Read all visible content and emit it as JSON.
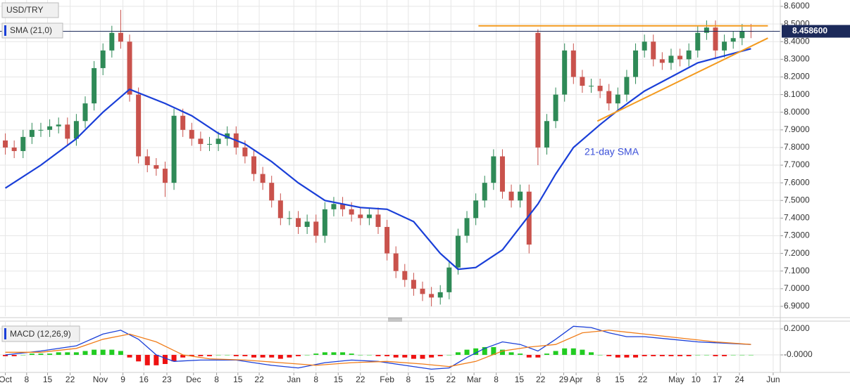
{
  "chart_data": [
    {
      "type": "candlestick",
      "title": "USD/TRY",
      "open": [
        7.84,
        7.8,
        7.78,
        7.86,
        7.9,
        7.9,
        7.92,
        7.93,
        7.85,
        7.95,
        8.05,
        8.25,
        8.35,
        8.45,
        8.4,
        8.1,
        7.75,
        7.7,
        7.68,
        7.6,
        7.98,
        7.9,
        7.85,
        7.82,
        7.82,
        7.85,
        7.88,
        7.8,
        7.75,
        7.65,
        7.6,
        7.5,
        7.4,
        7.4,
        7.35,
        7.38,
        7.3,
        7.45,
        7.48,
        7.45,
        7.42,
        7.4,
        7.42,
        7.35,
        7.2,
        7.1,
        7.05,
        7.0,
        6.97,
        6.95,
        6.98,
        7.12,
        7.3,
        7.4,
        7.5,
        7.6,
        7.75,
        7.55,
        7.5,
        7.55,
        8.45,
        7.8,
        7.95,
        8.1,
        8.35,
        8.2,
        8.15,
        8.15,
        8.12,
        8.05,
        8.1,
        8.2,
        8.35,
        8.4,
        8.3,
        8.28,
        8.32,
        8.3,
        8.35,
        8.45,
        8.48,
        8.35,
        8.4,
        8.42,
        8.46
      ],
      "high": [
        7.88,
        7.84,
        7.9,
        7.94,
        7.94,
        7.96,
        7.97,
        7.97,
        7.99,
        8.09,
        8.29,
        8.39,
        8.49,
        8.58,
        8.44,
        8.14,
        7.79,
        7.74,
        7.72,
        8.02,
        8.02,
        7.94,
        7.89,
        7.86,
        7.89,
        7.92,
        7.92,
        7.84,
        7.79,
        7.69,
        7.64,
        7.54,
        7.44,
        7.44,
        7.42,
        7.42,
        7.49,
        7.52,
        7.52,
        7.49,
        7.46,
        7.46,
        7.46,
        7.39,
        7.24,
        7.14,
        7.09,
        7.04,
        7.01,
        7.02,
        7.16,
        7.34,
        7.44,
        7.54,
        7.64,
        7.79,
        7.79,
        7.59,
        7.59,
        7.59,
        8.47,
        7.99,
        8.14,
        8.39,
        8.39,
        8.24,
        8.19,
        8.19,
        8.16,
        8.14,
        8.24,
        8.39,
        8.44,
        8.44,
        8.34,
        8.36,
        8.36,
        8.39,
        8.49,
        8.52,
        8.52,
        8.44,
        8.46,
        8.5,
        8.5
      ],
      "low": [
        7.76,
        7.74,
        7.74,
        7.82,
        7.86,
        7.86,
        7.88,
        7.81,
        7.81,
        7.91,
        8.01,
        8.21,
        8.31,
        8.36,
        8.06,
        7.71,
        7.66,
        7.64,
        7.52,
        7.56,
        7.86,
        7.81,
        7.78,
        7.78,
        7.78,
        7.81,
        7.76,
        7.71,
        7.61,
        7.56,
        7.46,
        7.36,
        7.36,
        7.31,
        7.31,
        7.26,
        7.26,
        7.41,
        7.41,
        7.38,
        7.36,
        7.36,
        7.31,
        7.16,
        7.06,
        7.01,
        6.96,
        6.93,
        6.9,
        6.91,
        6.94,
        7.08,
        7.26,
        7.36,
        7.46,
        7.56,
        7.51,
        7.46,
        7.46,
        7.2,
        7.7,
        7.76,
        7.91,
        8.06,
        8.16,
        8.11,
        8.11,
        8.08,
        8.01,
        8.01,
        8.06,
        8.16,
        8.31,
        8.26,
        8.24,
        8.24,
        8.26,
        8.26,
        8.31,
        8.41,
        8.31,
        8.31,
        8.36,
        8.38,
        8.42
      ],
      "close": [
        7.8,
        7.78,
        7.86,
        7.9,
        7.9,
        7.92,
        7.93,
        7.85,
        7.95,
        8.05,
        8.25,
        8.35,
        8.45,
        8.4,
        8.1,
        7.75,
        7.7,
        7.68,
        7.6,
        7.98,
        7.9,
        7.85,
        7.82,
        7.82,
        7.85,
        7.88,
        7.8,
        7.75,
        7.65,
        7.6,
        7.5,
        7.4,
        7.4,
        7.35,
        7.38,
        7.3,
        7.45,
        7.48,
        7.45,
        7.42,
        7.4,
        7.42,
        7.35,
        7.2,
        7.1,
        7.05,
        7.0,
        6.97,
        6.95,
        6.98,
        7.12,
        7.3,
        7.4,
        7.5,
        7.6,
        7.75,
        7.55,
        7.5,
        7.55,
        7.25,
        7.8,
        7.95,
        8.1,
        8.35,
        8.2,
        8.15,
        8.15,
        8.12,
        8.05,
        8.1,
        8.2,
        8.35,
        8.4,
        8.3,
        8.28,
        8.32,
        8.3,
        8.35,
        8.45,
        8.48,
        8.35,
        8.4,
        8.42,
        8.46,
        8.4586
      ],
      "up_color": "#2f8a57",
      "down_color": "#c9524c",
      "series": [
        {
          "name": "SMA (21,0)",
          "color": "#1a3fd8",
          "x": [
            0,
            4,
            8,
            11,
            14,
            18,
            21,
            24,
            27,
            30,
            33,
            36,
            40,
            43,
            46,
            49,
            51,
            53,
            56,
            58,
            60,
            62,
            64,
            67,
            69,
            72,
            75,
            78,
            81,
            84
          ],
          "values": [
            7.57,
            7.7,
            7.85,
            8.0,
            8.13,
            8.05,
            7.98,
            7.88,
            7.82,
            7.72,
            7.6,
            7.5,
            7.46,
            7.45,
            7.38,
            7.2,
            7.11,
            7.12,
            7.22,
            7.35,
            7.48,
            7.65,
            7.8,
            7.93,
            8.01,
            8.12,
            8.2,
            8.28,
            8.32,
            8.36
          ]
        }
      ],
      "lines": [
        {
          "color": "#f39a1e",
          "x": [
            53.3,
            85.9
          ],
          "values": [
            8.49,
            8.49
          ]
        },
        {
          "color": "#f39a1e",
          "x": [
            66.7,
            85.9
          ],
          "values": [
            7.95,
            8.42
          ]
        }
      ],
      "annotation": "21-day SMA",
      "last_price": {
        "value": 8.4586,
        "label": "8.458600"
      },
      "xlim": [
        -0.6,
        87.3
      ],
      "ylim": [
        6.844,
        8.636
      ],
      "grid": true,
      "xticks": [
        {
          "value": 0,
          "label": "Oct"
        },
        {
          "value": 2.4,
          "label": "8"
        },
        {
          "value": 4.76,
          "label": "15"
        },
        {
          "value": 7.3,
          "label": "22"
        },
        {
          "value": 10.7,
          "label": "Nov"
        },
        {
          "value": 13.25,
          "label": "9"
        },
        {
          "value": 15.6,
          "label": "16"
        },
        {
          "value": 18.2,
          "label": "23"
        },
        {
          "value": 21.2,
          "label": "Dec"
        },
        {
          "value": 23.8,
          "label": "8"
        },
        {
          "value": 26.2,
          "label": "15"
        },
        {
          "value": 28.6,
          "label": "22"
        },
        {
          "value": 32.5,
          "label": "Jan"
        },
        {
          "value": 35,
          "label": "8"
        },
        {
          "value": 37.5,
          "label": "15"
        },
        {
          "value": 40,
          "label": "22"
        },
        {
          "value": 43,
          "label": "Feb"
        },
        {
          "value": 45.4,
          "label": "8"
        },
        {
          "value": 47.8,
          "label": "15"
        },
        {
          "value": 50.2,
          "label": "22"
        },
        {
          "value": 52.8,
          "label": "Mar"
        },
        {
          "value": 55.3,
          "label": "8"
        },
        {
          "value": 57.9,
          "label": "15"
        },
        {
          "value": 60.3,
          "label": "22"
        },
        {
          "value": 62.9,
          "label": "29"
        },
        {
          "value": 64.3,
          "label": "Apr"
        },
        {
          "value": 66.8,
          "label": "8"
        },
        {
          "value": 69.2,
          "label": "15"
        },
        {
          "value": 71.8,
          "label": "22"
        },
        {
          "value": 75.6,
          "label": "May"
        },
        {
          "value": 77.8,
          "label": "10"
        },
        {
          "value": 80.2,
          "label": "17"
        },
        {
          "value": 82.7,
          "label": "24"
        },
        {
          "value": 86.5,
          "label": "Jun"
        }
      ],
      "yticks": [
        {
          "value": 8.6,
          "label": "8.6000"
        },
        {
          "value": 8.5,
          "label": "8.5000"
        },
        {
          "value": 8.4,
          "label": "8.4000"
        },
        {
          "value": 8.3,
          "label": "8.3000"
        },
        {
          "value": 8.2,
          "label": "8.2000"
        },
        {
          "value": 8.1,
          "label": "8.1000"
        },
        {
          "value": 8.0,
          "label": "8.0000"
        },
        {
          "value": 7.9,
          "label": "7.9000"
        },
        {
          "value": 7.8,
          "label": "7.8000"
        },
        {
          "value": 7.7,
          "label": "7.7000"
        },
        {
          "value": 7.6,
          "label": "7.6000"
        },
        {
          "value": 7.5,
          "label": "7.5000"
        },
        {
          "value": 7.4,
          "label": "7.4000"
        },
        {
          "value": 7.3,
          "label": "7.3000"
        },
        {
          "value": 7.2,
          "label": "7.2000"
        },
        {
          "value": 7.1,
          "label": "7.1000"
        },
        {
          "value": 7.0,
          "label": "7.0000"
        },
        {
          "value": 6.9,
          "label": "6.9000"
        }
      ]
    },
    {
      "type": "macd",
      "title": "MACD (12,26,9)",
      "hist": [
        -0.01,
        -0.01,
        0.0,
        0.01,
        0.01,
        0.01,
        0.02,
        0.02,
        0.02,
        0.03,
        0.04,
        0.04,
        0.04,
        0.03,
        -0.02,
        -0.05,
        -0.08,
        -0.08,
        -0.07,
        -0.05,
        -0.02,
        -0.01,
        -0.01,
        -0.01,
        0.0,
        0.0,
        -0.01,
        -0.01,
        -0.02,
        -0.02,
        -0.02,
        -0.03,
        -0.02,
        -0.01,
        0.0,
        0.01,
        0.02,
        0.02,
        0.02,
        0.01,
        0.0,
        0.0,
        -0.01,
        -0.01,
        -0.02,
        -0.02,
        -0.03,
        -0.03,
        -0.02,
        -0.01,
        0.0,
        0.02,
        0.04,
        0.05,
        0.06,
        0.06,
        0.04,
        0.02,
        0.01,
        -0.02,
        -0.02,
        0.01,
        0.03,
        0.05,
        0.05,
        0.04,
        0.02,
        0.0,
        -0.01,
        -0.02,
        -0.02,
        -0.02,
        -0.01,
        -0.01,
        -0.01,
        -0.01,
        -0.01,
        -0.01,
        0.0,
        0.0,
        -0.01,
        -0.01,
        0.0,
        0.0,
        0.0
      ],
      "up_color": "#22cc22",
      "down_color": "#ee1111",
      "series": [
        {
          "color": "#1a3fd8",
          "x": [
            0,
            4,
            8,
            11,
            13,
            15,
            17,
            19,
            22,
            26,
            30,
            33,
            36,
            39,
            42,
            45,
            48,
            50,
            52,
            54,
            56,
            58,
            60,
            62,
            64,
            66,
            68,
            70,
            72,
            75,
            78,
            81,
            84
          ],
          "values": [
            0.0,
            0.03,
            0.07,
            0.16,
            0.19,
            0.12,
            0.0,
            -0.05,
            -0.04,
            -0.04,
            -0.08,
            -0.1,
            -0.06,
            -0.04,
            -0.05,
            -0.08,
            -0.11,
            -0.1,
            -0.02,
            0.05,
            0.1,
            0.08,
            0.03,
            0.12,
            0.22,
            0.21,
            0.17,
            0.14,
            0.14,
            0.12,
            0.1,
            0.09,
            0.08
          ]
        },
        {
          "color": "#f07d1a",
          "x": [
            0,
            4,
            8,
            11,
            14,
            17,
            20,
            23,
            27,
            31,
            35,
            39,
            43,
            47,
            50,
            53,
            56,
            59,
            62,
            65,
            68,
            72,
            76,
            80,
            84
          ],
          "values": [
            0.02,
            0.02,
            0.05,
            0.12,
            0.16,
            0.1,
            0.0,
            -0.03,
            -0.04,
            -0.06,
            -0.08,
            -0.06,
            -0.05,
            -0.07,
            -0.09,
            -0.05,
            0.03,
            0.06,
            0.08,
            0.17,
            0.19,
            0.16,
            0.13,
            0.1,
            0.08
          ]
        }
      ],
      "xlim": [
        -0.6,
        87.3
      ],
      "ylim": [
        -0.124,
        0.254
      ],
      "grid": true,
      "yticks": [
        {
          "value": 0.2,
          "label": "0.2000"
        },
        {
          "value": 0,
          "label": "-0.0000"
        }
      ]
    }
  ]
}
